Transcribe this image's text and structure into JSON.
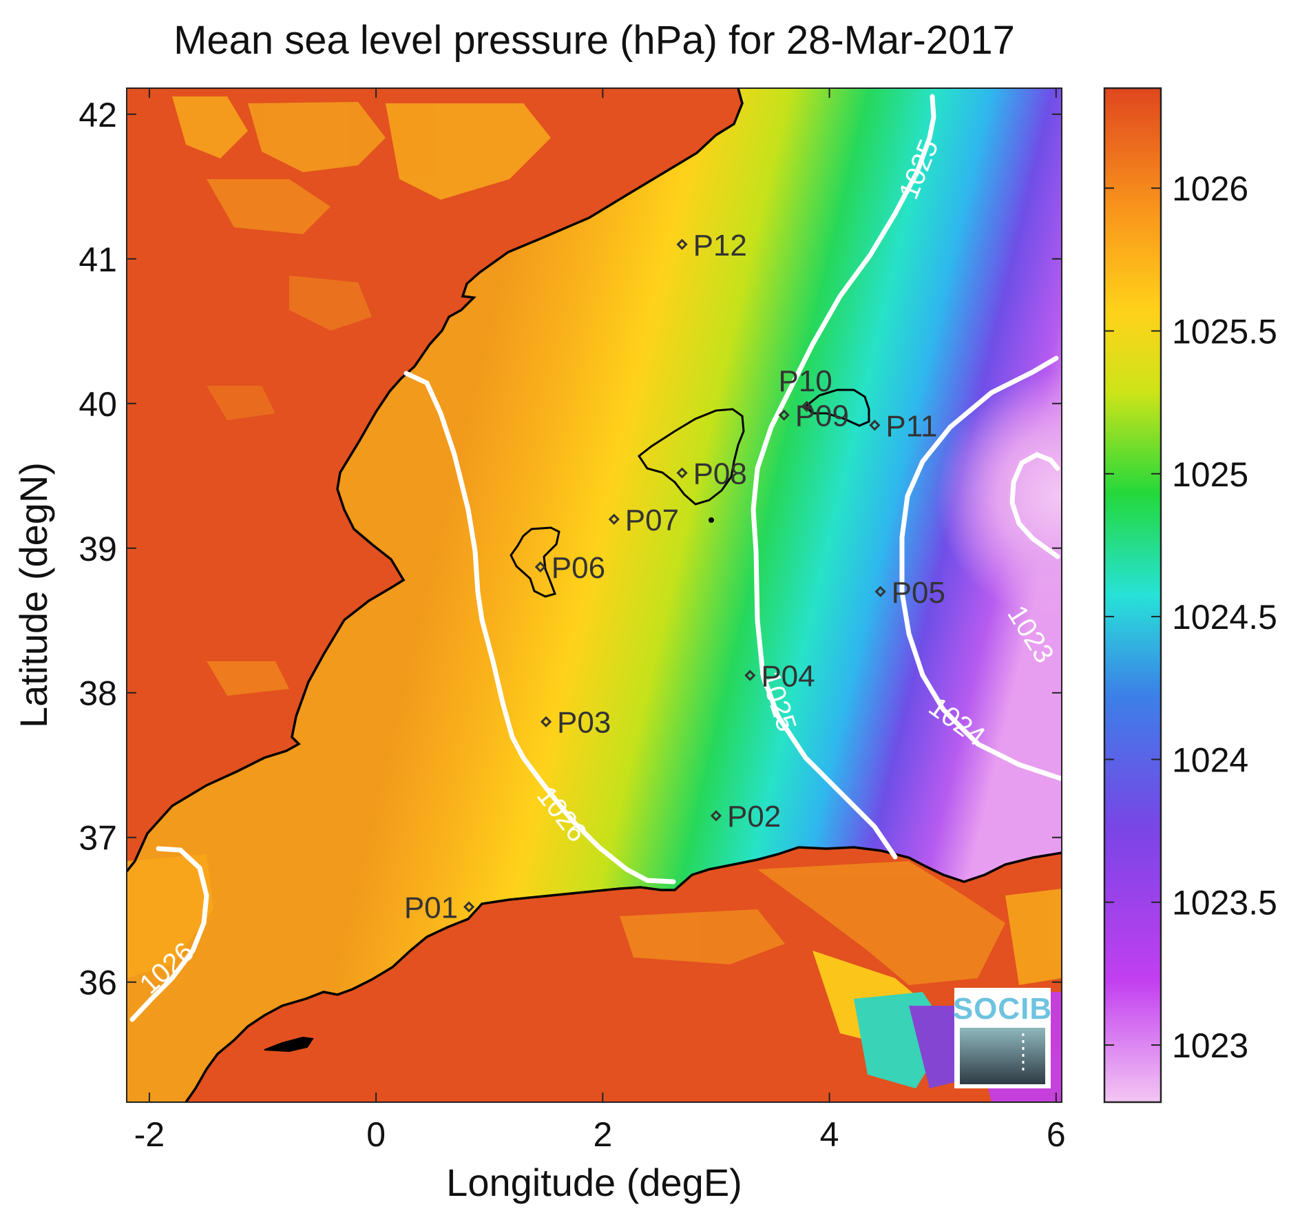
{
  "title": "Mean sea level pressure (hPa) for 28-Mar-2017",
  "xlabel": "Longitude (degE)",
  "ylabel": "Latitude (degN)",
  "x_ticks": [
    "-2",
    "0",
    "2",
    "4",
    "6"
  ],
  "y_ticks": [
    "36",
    "37",
    "38",
    "39",
    "40",
    "41",
    "42"
  ],
  "colorbar_ticks": [
    "1023",
    "1023.5",
    "1024",
    "1024.5",
    "1025",
    "1025.5",
    "1026"
  ],
  "contour_labels": [
    "1026",
    "1026",
    "1025",
    "1025",
    "1024",
    "1023"
  ],
  "logo": "SOCIB",
  "stations": [
    {
      "label": "P01",
      "lon": 0.82,
      "lat": 36.52
    },
    {
      "label": "P02",
      "lon": 3.0,
      "lat": 37.15
    },
    {
      "label": "P03",
      "lon": 1.5,
      "lat": 37.8
    },
    {
      "label": "P04",
      "lon": 3.3,
      "lat": 38.12
    },
    {
      "label": "P05",
      "lon": 4.45,
      "lat": 38.7
    },
    {
      "label": "P06",
      "lon": 1.45,
      "lat": 38.87
    },
    {
      "label": "P07",
      "lon": 2.1,
      "lat": 39.2
    },
    {
      "label": "P08",
      "lon": 2.7,
      "lat": 39.52
    },
    {
      "label": "P09",
      "lon": 3.6,
      "lat": 39.92
    },
    {
      "label": "P10",
      "lon": 3.8,
      "lat": 39.98
    },
    {
      "label": "P11",
      "lon": 4.4,
      "lat": 39.85
    },
    {
      "label": "P12",
      "lon": 2.7,
      "lat": 41.1
    }
  ],
  "chart_data": {
    "type": "heatmap",
    "title": "Mean sea level pressure (hPa) for 28-Mar-2017",
    "xlabel": "Longitude (degE)",
    "ylabel": "Latitude (degN)",
    "xlim": [
      -2.2,
      6.05
    ],
    "ylim": [
      35.17,
      42.18
    ],
    "colorbar": {
      "label": "",
      "range": [
        1022.8,
        1026.35
      ],
      "ticks": [
        1023,
        1023.5,
        1024,
        1024.5,
        1025,
        1025.5,
        1026
      ]
    },
    "colormap": [
      "#f3c6f3",
      "#c23ff0",
      "#7a45e6",
      "#3c7fe8",
      "#27e2d8",
      "#24d83b",
      "#cde419",
      "#ffd21a",
      "#f9951c",
      "#e0471f"
    ],
    "contour_levels": [
      1023,
      1024,
      1025,
      1026
    ]
  }
}
